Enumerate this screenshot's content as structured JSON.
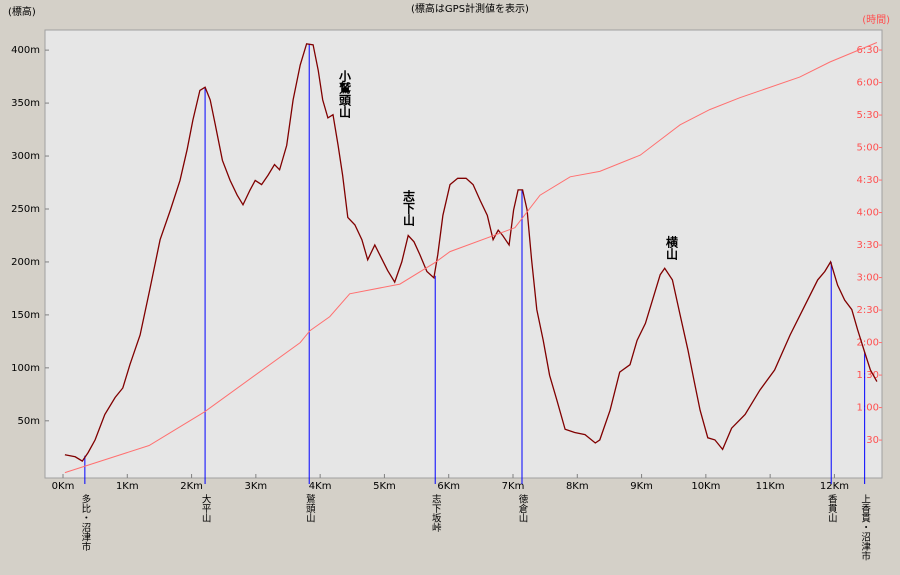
{
  "chart_data": {
    "type": "line",
    "title": "(標高はGPS計測値を表示)",
    "y_label": "(標高)",
    "y2_label": "(時間)",
    "xlim": [
      -0.28,
      12.74
    ],
    "ylim": [
      -4,
      419
    ],
    "y2lim": [
      -5,
      408.5
    ],
    "xticks": [
      {
        "value": 0,
        "label": "0Km"
      },
      {
        "value": 1,
        "label": "1Km"
      },
      {
        "value": 2,
        "label": "2Km"
      },
      {
        "value": 3,
        "label": "3Km"
      },
      {
        "value": 4,
        "label": "4Km"
      },
      {
        "value": 5,
        "label": "5Km"
      },
      {
        "value": 6,
        "label": "6Km"
      },
      {
        "value": 7,
        "label": "7Km"
      },
      {
        "value": 8,
        "label": "8Km"
      },
      {
        "value": 9,
        "label": "9Km"
      },
      {
        "value": 10,
        "label": "10Km"
      },
      {
        "value": 11,
        "label": "11Km"
      },
      {
        "value": 12,
        "label": "12Km"
      }
    ],
    "yticks": [
      {
        "value": 50,
        "label": "50m"
      },
      {
        "value": 100,
        "label": "100m"
      },
      {
        "value": 150,
        "label": "150m"
      },
      {
        "value": 200,
        "label": "200m"
      },
      {
        "value": 250,
        "label": "250m"
      },
      {
        "value": 300,
        "label": "300m"
      },
      {
        "value": 350,
        "label": "350m"
      },
      {
        "value": 400,
        "label": "400m"
      }
    ],
    "y2ticks": [
      30,
      {
        "value": 60,
        "label": "1:00"
      },
      {
        "value": 90,
        "label": "1:30"
      },
      {
        "value": 120,
        "label": "2:00"
      },
      {
        "value": 150,
        "label": "2:30"
      },
      {
        "value": 180,
        "label": "3:00"
      },
      {
        "value": 210,
        "label": "3:30"
      },
      {
        "value": 240,
        "label": "4:00"
      },
      {
        "value": 270,
        "label": "4:30"
      },
      {
        "value": 300,
        "label": "5:00"
      },
      {
        "value": 330,
        "label": "5:30"
      },
      {
        "value": 360,
        "label": "6:00"
      },
      {
        "value": 390,
        "label": "6:30"
      }
    ],
    "series": [
      {
        "color": "#800000",
        "x": [
          0.03,
          0.19,
          0.3,
          0.39,
          0.5,
          0.65,
          0.81,
          0.93,
          1.04,
          1.2,
          1.35,
          1.51,
          1.67,
          1.82,
          1.93,
          2.02,
          2.13,
          2.21,
          2.29,
          2.37,
          2.48,
          2.6,
          2.71,
          2.8,
          2.91,
          2.99,
          3.09,
          3.19,
          3.29,
          3.37,
          3.48,
          3.58,
          3.69,
          3.79,
          3.89,
          3.97,
          4.04,
          4.12,
          4.2,
          4.28,
          4.35,
          4.43,
          4.54,
          4.65,
          4.74,
          4.85,
          4.95,
          5.05,
          5.16,
          5.27,
          5.37,
          5.46,
          5.55,
          5.66,
          5.77,
          5.83,
          5.91,
          6.02,
          6.14,
          6.27,
          6.38,
          6.49,
          6.6,
          6.69,
          6.77,
          6.84,
          6.94,
          7.01,
          7.08,
          7.15,
          7.22,
          7.29,
          7.37,
          7.47,
          7.57,
          7.68,
          7.81,
          7.96,
          8.12,
          8.28,
          8.35,
          8.51,
          8.66,
          8.82,
          8.93,
          9.06,
          9.17,
          9.29,
          9.36,
          9.48,
          9.6,
          9.72,
          9.83,
          9.91,
          10.03,
          10.14,
          10.26,
          10.4,
          10.61,
          10.84,
          11.07,
          11.31,
          11.54,
          11.74,
          11.85,
          11.94,
          12.05,
          12.16,
          12.27,
          12.36,
          12.47,
          12.56,
          12.66
        ],
        "values": [
          18,
          16,
          12,
          20,
          32,
          56,
          72,
          81,
          103,
          131,
          174,
          221,
          249,
          277,
          306,
          334,
          362,
          365,
          353,
          329,
          296,
          277,
          263,
          254,
          268,
          277,
          273,
          282,
          292,
          287,
          310,
          353,
          386,
          406,
          405,
          381,
          353,
          336,
          339,
          310,
          282,
          242,
          235,
          221,
          202,
          216,
          204,
          192,
          181,
          200,
          225,
          219,
          207,
          191,
          185,
          207,
          244,
          273,
          279,
          279,
          273,
          258,
          244,
          221,
          230,
          225,
          216,
          249,
          268,
          268,
          249,
          202,
          155,
          126,
          93,
          70,
          42,
          39,
          37,
          29,
          32,
          60,
          96,
          103,
          126,
          142,
          164,
          188,
          194,
          183,
          150,
          117,
          84,
          60,
          34,
          32,
          23,
          43,
          56,
          79,
          98,
          131,
          159,
          183,
          191,
          200,
          178,
          164,
          155,
          136,
          115,
          98,
          87
        ]
      },
      {
        "color": "#ff7070",
        "axis": "y2",
        "x": [
          0.03,
          1.34,
          2.2,
          3.69,
          3.84,
          4.15,
          4.46,
          5.24,
          5.79,
          6.02,
          7.03,
          7.42,
          7.89,
          8.35,
          8.98,
          9.6,
          10.06,
          10.53,
          11.46,
          11.93,
          12.66
        ],
        "values": [
          0,
          25,
          56,
          120,
          131,
          144,
          165,
          174,
          194,
          204,
          226,
          256,
          273,
          278,
          293,
          321,
          335,
          346,
          365,
          379,
          397
        ]
      }
    ],
    "landmarks": [
      {
        "label": "多比・沼津市",
        "x": 0.34,
        "elev": 17
      },
      {
        "label": "大平山",
        "x": 2.21,
        "elev": 365
      },
      {
        "label": "鷲頭山",
        "x": 3.83,
        "elev": 406
      },
      {
        "label": "志下坂峠",
        "x": 5.79,
        "elev": 187
      },
      {
        "label": "徳倉山",
        "x": 7.14,
        "elev": 268
      },
      {
        "label": "香貫山",
        "x": 11.95,
        "elev": 200
      },
      {
        "label": "上香貫・沼津市",
        "x": 12.47,
        "elev": 115
      }
    ],
    "annotations": [
      "小鷲頭山",
      "志下山",
      "横山"
    ]
  }
}
